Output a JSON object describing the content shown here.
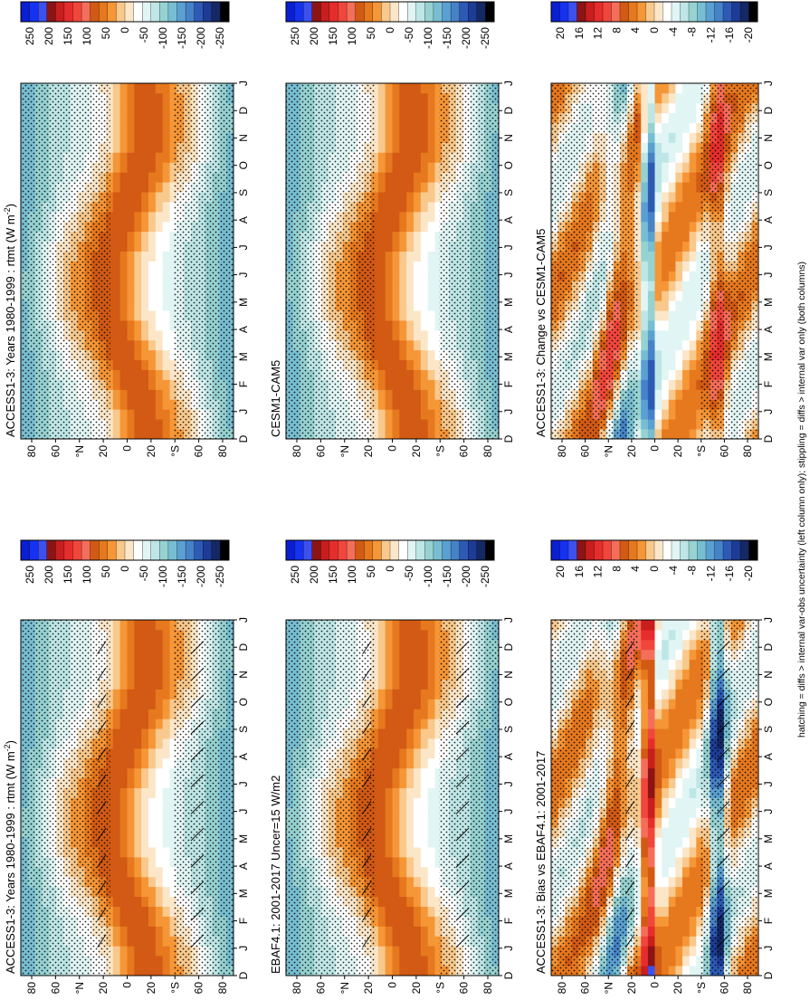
{
  "figure": {
    "footnote": "hatching = diffs > internal var-obs uncertainty (left column only); stippling = diffs > internal var only (both columns)"
  },
  "chart_data": [
    {
      "id": "p1",
      "type": "heatmap",
      "title": "ACCESS1-3: Years 1980-1999 : rtmt (W m",
      "title_sup": "-2",
      "title_end": ")",
      "months": [
        "D",
        "J",
        "F",
        "M",
        "A",
        "M",
        "J",
        "J",
        "A",
        "S",
        "O",
        "N",
        "D",
        "J"
      ],
      "lat_ticks": [
        "80",
        "60",
        "°N",
        "20",
        "0",
        "20",
        "°S",
        "60",
        "80"
      ],
      "scale": "abs",
      "stipple": true,
      "hatch": true
    },
    {
      "id": "p2",
      "type": "heatmap",
      "title": "ACCESS1-3: Years 1980-1999 : rtmt (W m",
      "title_sup": "-2",
      "title_end": ")",
      "months": [
        "D",
        "J",
        "F",
        "M",
        "A",
        "M",
        "J",
        "J",
        "A",
        "S",
        "O",
        "N",
        "D",
        "J"
      ],
      "lat_ticks": [
        "80",
        "60",
        "°N",
        "20",
        "0",
        "20",
        "°S",
        "60",
        "80"
      ],
      "scale": "abs",
      "stipple": true,
      "hatch": false
    },
    {
      "id": "p3",
      "type": "heatmap",
      "title": "EBAF4.1: 2001-2017 Uncer=15 W/m2",
      "title_sup": "",
      "title_end": "",
      "months": [
        "D",
        "J",
        "F",
        "M",
        "A",
        "M",
        "J",
        "J",
        "A",
        "S",
        "O",
        "N",
        "D",
        "J"
      ],
      "lat_ticks": [
        "80",
        "60",
        "°N",
        "20",
        "0",
        "20",
        "°S",
        "60",
        "80"
      ],
      "scale": "abs",
      "stipple": true,
      "hatch": true
    },
    {
      "id": "p4",
      "type": "heatmap",
      "title": "CESM1-CAM5",
      "title_sup": "",
      "title_end": "",
      "months": [
        "D",
        "J",
        "F",
        "M",
        "A",
        "M",
        "J",
        "J",
        "A",
        "S",
        "O",
        "N",
        "D",
        "J"
      ],
      "lat_ticks": [
        "80",
        "60",
        "°N",
        "20",
        "0",
        "20",
        "°S",
        "60",
        "80"
      ],
      "scale": "abs",
      "stipple": true,
      "hatch": false
    },
    {
      "id": "p5",
      "type": "heatmap",
      "title": "ACCESS1-3: Bias vs EBAF4.1: 2001-2017",
      "title_sup": "",
      "title_end": "",
      "months": [
        "D",
        "J",
        "F",
        "M",
        "A",
        "M",
        "J",
        "J",
        "A",
        "S",
        "O",
        "N",
        "D",
        "J"
      ],
      "lat_ticks": [
        "80",
        "60",
        "°N",
        "20",
        "0",
        "20",
        "°S",
        "60",
        "80"
      ],
      "scale": "diff",
      "stipple": true,
      "hatch": true
    },
    {
      "id": "p6",
      "type": "heatmap",
      "title": "ACCESS1-3: Change vs CESM1-CAM5",
      "title_sup": "",
      "title_end": "",
      "months": [
        "D",
        "J",
        "F",
        "M",
        "A",
        "M",
        "J",
        "J",
        "A",
        "S",
        "O",
        "N",
        "D",
        "J"
      ],
      "lat_ticks": [
        "80",
        "60",
        "°N",
        "20",
        "0",
        "20",
        "°S",
        "60",
        "80"
      ],
      "scale": "diff",
      "stipple": true,
      "hatch": false
    }
  ],
  "colorbars": {
    "abs": {
      "labels": [
        "250",
        "200",
        "150",
        "100",
        "50",
        "0",
        "-50",
        "-100",
        "-150",
        "-200",
        "-250"
      ],
      "colors": [
        "#0a1ed2",
        "#1432f0",
        "#3c50f0",
        "#8c1414",
        "#c81e1e",
        "#e62d2d",
        "#f0463c",
        "#f56e5a",
        "#d25a14",
        "#e6781e",
        "#f59637",
        "#f8c88c",
        "#fbe6c8",
        "#ffffff",
        "#e1f5f5",
        "#bee6e6",
        "#96d2d2",
        "#78bed2",
        "#5aa0d2",
        "#4682c8",
        "#2d5ab4",
        "#1e3c96",
        "#142864",
        "#000000"
      ]
    },
    "diff": {
      "labels": [
        "20",
        "16",
        "12",
        "8",
        "4",
        "0",
        "-4",
        "-8",
        "-12",
        "-16",
        "-20"
      ],
      "colors": [
        "#0a1ed2",
        "#1432f0",
        "#3c50f0",
        "#8c1414",
        "#c81e1e",
        "#e62d2d",
        "#f0463c",
        "#f56e5a",
        "#d25a14",
        "#e6781e",
        "#f59637",
        "#f8c88c",
        "#fbe6c8",
        "#ffffff",
        "#e1f5f5",
        "#bee6e6",
        "#96d2d2",
        "#78bed2",
        "#5aa0d2",
        "#4682c8",
        "#2d5ab4",
        "#1e3c96",
        "#142864",
        "#000000"
      ]
    }
  }
}
